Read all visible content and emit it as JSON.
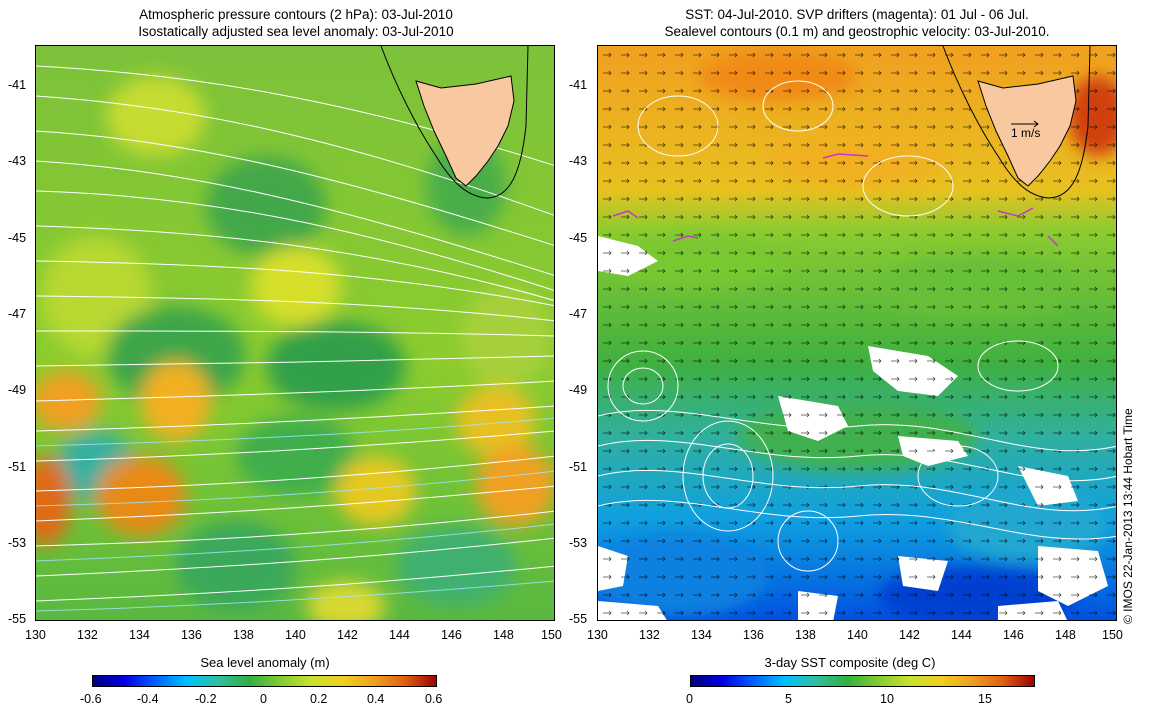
{
  "left_panel": {
    "title_line1": "Atmospheric pressure contours (2 hPa): 03-Jul-2010",
    "title_line2": "Isostatically adjusted sea level anomaly: 03-Jul-2010",
    "colorbar_label": "Sea level anomaly (m)",
    "colorbar_ticks": [
      "-0.6",
      "-0.4",
      "-0.2",
      "0",
      "0.2",
      "0.4",
      "0.6"
    ],
    "colorbar_range": [
      -0.6,
      0.6
    ]
  },
  "right_panel": {
    "title_line1": "SST: 04-Jul-2010. SVP drifters (magenta): 01 Jul - 06 Jul.",
    "title_line2": "Sealevel contours (0.1 m) and geostrophic velocity: 03-Jul-2010.",
    "colorbar_label": "3-day SST composite (deg C)",
    "colorbar_ticks": [
      "0",
      "5",
      "10",
      "15"
    ],
    "colorbar_range": [
      0,
      17.5
    ],
    "velocity_scale_label": "1 m/s"
  },
  "axes": {
    "lat_ticks": [
      "-41",
      "-43",
      "-45",
      "-47",
      "-49",
      "-51",
      "-53",
      "-55"
    ],
    "lon_ticks": [
      "130",
      "132",
      "134",
      "136",
      "138",
      "140",
      "142",
      "144",
      "146",
      "148",
      "150"
    ],
    "lon_range": [
      130,
      150
    ],
    "lat_range": [
      -55,
      -40
    ]
  },
  "credit": "© IMOS 22-Jan-2013 13:44 Hobart Time",
  "colors": {
    "land": "#f8c8a0",
    "contour": "#ffffff",
    "drifter": "#cc33cc"
  }
}
